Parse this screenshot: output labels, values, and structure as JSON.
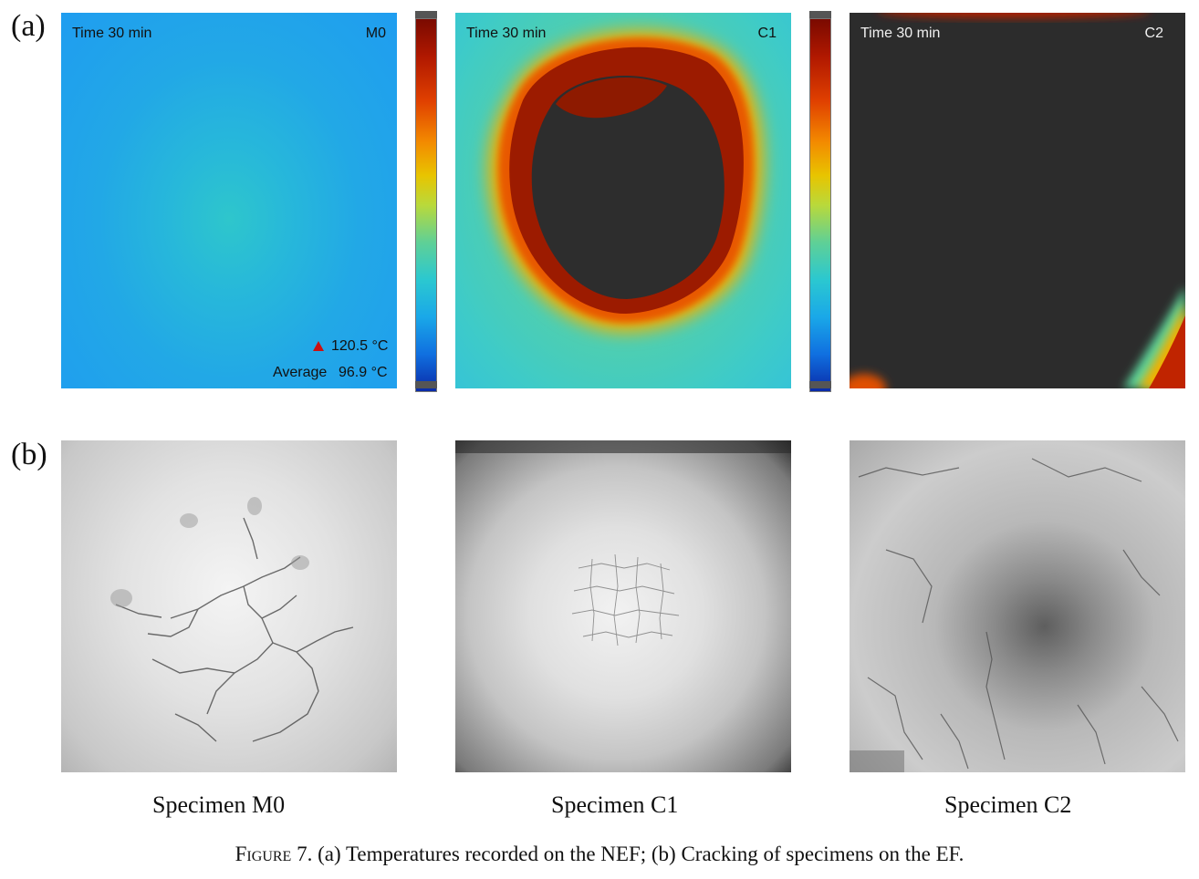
{
  "row_a": {
    "label": "(a)",
    "panels": [
      {
        "time": "Time 30 min",
        "id": "M0",
        "max_value": "120.5 °C",
        "average_label": "Average",
        "average_value": "96.9 °C"
      },
      {
        "time": "Time 30 min",
        "id": "C1"
      },
      {
        "time": "Time 30 min",
        "id": "C2"
      }
    ],
    "marker_color": "#cc1010"
  },
  "row_b": {
    "label": "(b)",
    "captions": [
      "Specimen M0",
      "Specimen C1",
      "Specimen C2"
    ]
  },
  "figure_caption": {
    "label": "Figure 7.",
    "text": " (a) Temperatures recorded on the NEF; (b) Cracking of specimens on the EF."
  }
}
